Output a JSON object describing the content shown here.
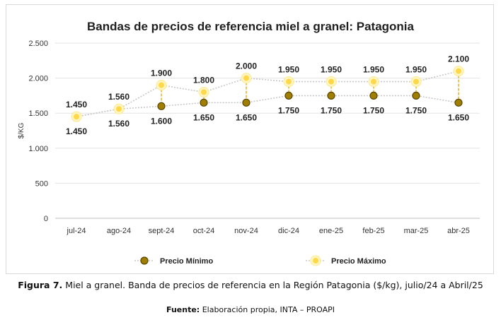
{
  "chart_data": {
    "type": "line",
    "title": "Bandas de precios de referencia miel a granel: Patagonia",
    "ylabel": "$/KG",
    "xlabel": "",
    "ylim": [
      0,
      2500
    ],
    "yticks": [
      0,
      500,
      1000,
      1500,
      2000,
      2500
    ],
    "ytick_labels": [
      "0",
      "500",
      "1.000",
      "1.500",
      "2.000",
      "2.500"
    ],
    "categories": [
      "jul-24",
      "ago-24",
      "sept-24",
      "oct-24",
      "nov-24",
      "dic-24",
      "ene-25",
      "feb-25",
      "mar-25",
      "abr-25"
    ],
    "series": [
      {
        "name": "Precio Mínimo",
        "values": [
          1450,
          1560,
          1600,
          1650,
          1650,
          1750,
          1750,
          1750,
          1750,
          1650
        ],
        "labels": [
          "1.450",
          "1.560",
          "1.600",
          "1.650",
          "1.650",
          "1.750",
          "1.750",
          "1.750",
          "1.750",
          "1.650"
        ],
        "color": "#8a6d00"
      },
      {
        "name": "Precio Máximo",
        "values": [
          1450,
          1560,
          1900,
          1800,
          2000,
          1950,
          1950,
          1950,
          1950,
          2100
        ],
        "labels": [
          "1.450",
          "1.560",
          "1.900",
          "1.800",
          "2.000",
          "1.950",
          "1.950",
          "1.950",
          "1.950",
          "2.100"
        ],
        "color": "#ffd84a"
      }
    ],
    "grid": true,
    "legend_position": "bottom"
  },
  "caption": {
    "figure_label": "Figura 7.",
    "text": "Miel a granel. Banda de precios de referencia en la Región Patagonia ($/kg), julio/24 a Abril/25"
  },
  "source": {
    "label": "Fuente:",
    "text": "Elaboración propia, INTA – PROAPI"
  }
}
